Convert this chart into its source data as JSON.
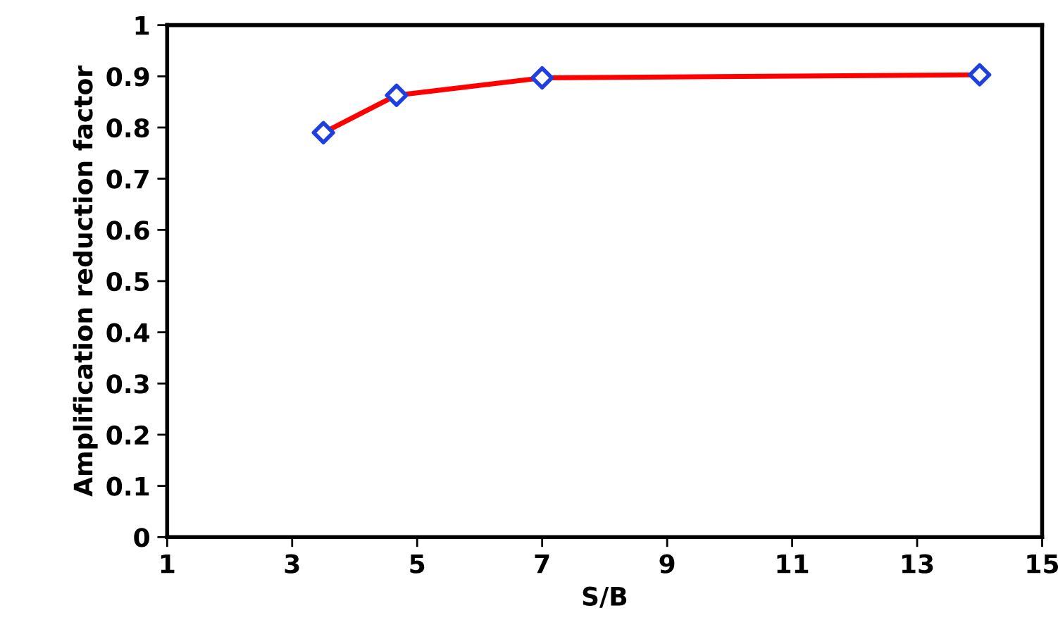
{
  "chart_data": {
    "type": "line",
    "xlabel": "S/B",
    "ylabel": "Amplification reduction factor",
    "x": [
      3.5,
      4.67,
      7,
      14
    ],
    "series": [
      {
        "color": "#ff0000",
        "colors": [
          "#1f3fe0",
          "#1f3fe0",
          "#1f3fe0",
          "#1f3fe0"
        ],
        "values": [
          0.79,
          0.863,
          0.897,
          0.903
        ]
      }
    ],
    "marker": "diamond",
    "line_style": "solid",
    "xlim": [
      1,
      15
    ],
    "xticks": [
      1,
      3,
      5,
      7,
      9,
      11,
      13,
      15
    ],
    "ylim": [
      0,
      1
    ],
    "yticks": [
      0,
      0.1,
      0.2,
      0.3,
      0.4,
      0.5,
      0.6,
      0.7,
      0.8,
      0.9,
      1
    ],
    "grid": false,
    "legend": false
  }
}
